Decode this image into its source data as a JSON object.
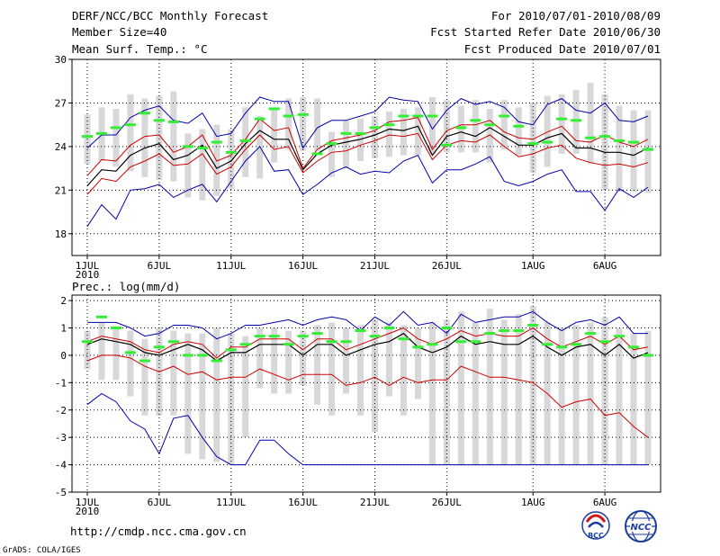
{
  "header": {
    "title": "DERF/NCC/BCC Monthly Forecast",
    "member_size": "Member Size=40",
    "panel1_label": "Mean Surf. Temp.: °C",
    "panel2_label": "Prec.: log(mm/d)",
    "period": "For 2010/07/01-2010/08/09",
    "started": "Fcst Started Refer Date 2010/06/30",
    "produced": "Fcst Produced Date 2010/07/01"
  },
  "footer": {
    "url": "http://cmdp.ncc.cma.gov.cn",
    "credit": "GrADS: COLA/IGES",
    "logo1_text": "BCC",
    "logo2_text": "NCC"
  },
  "colors": {
    "ensemble_mean": "#000000",
    "spread": "#cc0000",
    "extremes": "#0000aa",
    "members": "#d8d8da",
    "climatology": "#33ee33",
    "grid": "#000000"
  },
  "chart_data": [
    {
      "type": "line",
      "title": "Mean Surf. Temp.: °C",
      "xlabel": "",
      "ylabel": "°C",
      "ylim": [
        16.5,
        30
      ],
      "yticks": [
        18,
        21,
        24,
        27,
        30
      ],
      "xlim": [
        0,
        39
      ],
      "xticks": [
        {
          "pos": 0,
          "label": "1JUL",
          "sub": "2010"
        },
        {
          "pos": 5,
          "label": "6JUL"
        },
        {
          "pos": 10,
          "label": "11JUL"
        },
        {
          "pos": 15,
          "label": "16JUL"
        },
        {
          "pos": 20,
          "label": "21JUL"
        },
        {
          "pos": 25,
          "label": "26JUL"
        },
        {
          "pos": 31,
          "label": "1AUG"
        },
        {
          "pos": 36,
          "label": "6AUG"
        }
      ],
      "grid": true,
      "members_low": [
        22.8,
        23.0,
        22.6,
        22.3,
        21.9,
        21.7,
        21.6,
        20.5,
        20.3,
        20.6,
        21.1,
        21.9,
        21.8,
        22.9,
        23.8,
        23.7,
        23.7,
        21.9,
        22.5,
        23.0,
        23.2,
        23.3,
        23.4,
        23.4,
        23.5,
        23.6,
        23.6,
        23.6,
        22.9,
        23.8,
        23.4,
        22.2,
        22.6,
        23.5,
        23.5,
        22.8,
        21.0,
        20.9,
        20.9,
        20.8
      ],
      "members_high": [
        26.2,
        26.7,
        26.6,
        27.6,
        27.3,
        27.5,
        27.8,
        24.9,
        25.2,
        25.5,
        25.2,
        26.7,
        26.1,
        26.6,
        27.3,
        27.4,
        27.3,
        25.0,
        25.8,
        25.9,
        26.1,
        26.4,
        26.6,
        26.7,
        27.4,
        27.2,
        26.8,
        27.2,
        26.6,
        27.2,
        26.7,
        27.0,
        27.5,
        27.6,
        27.9,
        28.4,
        27.6,
        26.8,
        26.5,
        26.5
      ],
      "series": [
        {
          "name": "max",
          "values": [
            23.9,
            24.8,
            24.8,
            26.0,
            26.5,
            26.8,
            25.8,
            25.6,
            26.3,
            24.7,
            24.9,
            26.3,
            27.4,
            27.1,
            27.1,
            23.9,
            25.3,
            25.8,
            25.8,
            26.1,
            26.4,
            27.4,
            27.2,
            27.1,
            25.2,
            26.5,
            27.3,
            26.9,
            27.1,
            26.7,
            25.7,
            25.5,
            26.9,
            27.3,
            26.5,
            26.3,
            27.0,
            25.8,
            25.7,
            26.1
          ]
        },
        {
          "name": "upper",
          "values": [
            22.0,
            23.1,
            23.0,
            24.1,
            24.7,
            24.8,
            23.6,
            24.0,
            24.8,
            23.0,
            23.4,
            24.5,
            25.9,
            25.1,
            25.3,
            22.5,
            23.8,
            24.4,
            24.6,
            24.8,
            25.1,
            25.7,
            25.8,
            26.0,
            23.8,
            25.1,
            25.5,
            25.5,
            25.8,
            25.0,
            24.6,
            24.5,
            25.0,
            25.4,
            24.4,
            24.3,
            24.8,
            24.3,
            24.0,
            24.5
          ]
        },
        {
          "name": "mean",
          "values": [
            21.3,
            22.4,
            22.3,
            23.4,
            23.9,
            24.2,
            23.1,
            23.4,
            24.1,
            22.5,
            23.0,
            24.2,
            25.1,
            24.5,
            24.5,
            22.4,
            23.5,
            24.1,
            24.3,
            24.5,
            24.8,
            25.2,
            25.1,
            25.4,
            23.4,
            24.7,
            25.0,
            24.7,
            25.3,
            24.7,
            24.1,
            24.1,
            24.6,
            24.9,
            23.9,
            23.9,
            23.6,
            23.6,
            23.4,
            23.9
          ]
        },
        {
          "name": "lower",
          "values": [
            20.7,
            21.8,
            21.6,
            22.6,
            23.0,
            23.5,
            22.7,
            22.8,
            23.5,
            22.1,
            22.6,
            23.8,
            24.8,
            23.8,
            24.0,
            22.2,
            23.0,
            23.6,
            23.7,
            24.1,
            24.4,
            24.8,
            24.7,
            24.9,
            23.1,
            24.1,
            24.4,
            24.3,
            24.8,
            24.0,
            23.3,
            23.5,
            23.9,
            24.1,
            23.2,
            22.9,
            22.7,
            22.8,
            22.6,
            22.9
          ]
        },
        {
          "name": "min",
          "values": [
            18.5,
            20.0,
            19.0,
            21.0,
            21.1,
            21.4,
            20.5,
            21.0,
            21.4,
            20.2,
            21.6,
            23.0,
            24.0,
            22.3,
            22.4,
            20.7,
            21.4,
            22.2,
            22.6,
            22.1,
            22.3,
            22.2,
            23.0,
            23.4,
            21.5,
            22.4,
            22.4,
            22.8,
            23.3,
            21.6,
            21.3,
            21.6,
            22.1,
            22.4,
            20.9,
            20.9,
            19.6,
            21.1,
            20.5,
            21.2
          ]
        }
      ],
      "climatology": [
        24.7,
        24.9,
        25.3,
        25.5,
        26.3,
        25.8,
        25.7,
        24.0,
        23.9,
        24.3,
        23.6,
        24.4,
        25.9,
        26.6,
        26.1,
        26.2,
        23.5,
        24.2,
        24.9,
        24.9,
        25.3,
        25.5,
        26.1,
        26.1,
        26.1,
        24.1,
        25.3,
        25.8,
        25.5,
        26.1,
        25.4,
        24.2,
        24.3,
        25.9,
        25.8,
        24.6,
        24.7,
        24.4,
        24.3,
        23.8
      ]
    },
    {
      "type": "line",
      "title": "Prec.: log(mm/d)",
      "xlabel": "",
      "ylabel": "log(mm/d)",
      "ylim": [
        -5,
        2.2
      ],
      "yticks": [
        -5,
        -4,
        -3,
        -2,
        -1,
        0,
        1,
        2
      ],
      "xlim": [
        0,
        39
      ],
      "xticks": [
        {
          "pos": 0,
          "label": "1JUL",
          "sub": "2010"
        },
        {
          "pos": 5,
          "label": "6JUL"
        },
        {
          "pos": 10,
          "label": "11JUL"
        },
        {
          "pos": 15,
          "label": "16JUL"
        },
        {
          "pos": 20,
          "label": "21JUL"
        },
        {
          "pos": 25,
          "label": "26JUL"
        },
        {
          "pos": 31,
          "label": "1AUG"
        },
        {
          "pos": 36,
          "label": "6AUG"
        }
      ],
      "grid": true,
      "members_low": [
        -0.5,
        -0.9,
        -0.9,
        -1.5,
        -2.2,
        -2.2,
        -2.2,
        -3.6,
        -3.8,
        -3.9,
        -4.0,
        -3.0,
        -1.2,
        -1.4,
        -1.4,
        -1.1,
        -1.8,
        -2.2,
        -1.4,
        -2.2,
        -2.8,
        -1.5,
        -2.2,
        -1.6,
        -4.0,
        -4.0,
        -4.0,
        -4.0,
        -4.0,
        -4.0,
        -4.0,
        -4.0,
        -4.0,
        -4.0,
        -4.0,
        -4.0,
        -4.0,
        -4.0,
        -4.0,
        -4.0
      ],
      "members_high": [
        0.9,
        1.2,
        1.0,
        0.9,
        0.6,
        1.0,
        0.9,
        0.8,
        0.8,
        1.0,
        0.8,
        0.7,
        1.0,
        1.0,
        0.9,
        0.9,
        1.1,
        1.2,
        1.0,
        1.1,
        1.3,
        1.2,
        1.1,
        1.0,
        1.2,
        1.3,
        1.6,
        1.2,
        1.7,
        1.3,
        1.5,
        1.8,
        1.2,
        1.0,
        1.1,
        1.2,
        1.4,
        1.0,
        0.8,
        0.9
      ],
      "series": [
        {
          "name": "max",
          "values": [
            1.2,
            1.2,
            1.2,
            1.0,
            0.7,
            0.8,
            1.1,
            1.1,
            1.0,
            0.6,
            0.8,
            1.1,
            1.1,
            1.2,
            1.3,
            1.1,
            1.3,
            1.4,
            1.3,
            0.9,
            1.4,
            1.1,
            1.6,
            1.1,
            1.2,
            0.8,
            1.5,
            1.2,
            1.3,
            1.4,
            1.4,
            1.6,
            1.2,
            0.9,
            1.2,
            1.3,
            1.1,
            1.4,
            0.8,
            0.8
          ]
        },
        {
          "name": "upper",
          "values": [
            0.5,
            0.7,
            0.6,
            0.5,
            0.2,
            0.1,
            0.4,
            0.5,
            0.4,
            -0.1,
            0.3,
            0.3,
            0.6,
            0.6,
            0.6,
            0.2,
            0.6,
            0.6,
            0.2,
            0.4,
            0.6,
            0.8,
            1.0,
            0.6,
            0.4,
            0.6,
            0.9,
            0.7,
            0.8,
            0.7,
            0.7,
            1.0,
            0.6,
            0.3,
            0.5,
            0.7,
            0.4,
            0.7,
            0.2,
            0.3
          ]
        },
        {
          "name": "mean",
          "values": [
            0.4,
            0.6,
            0.5,
            0.4,
            0.1,
            0.0,
            0.2,
            0.4,
            0.2,
            -0.2,
            0.1,
            0.1,
            0.4,
            0.4,
            0.4,
            0.0,
            0.4,
            0.4,
            0.0,
            0.2,
            0.4,
            0.5,
            0.8,
            0.3,
            0.1,
            0.3,
            0.7,
            0.4,
            0.5,
            0.4,
            0.4,
            0.7,
            0.3,
            0.0,
            0.3,
            0.4,
            0.0,
            0.4,
            -0.1,
            0.1
          ]
        },
        {
          "name": "lower",
          "values": [
            -0.2,
            0.0,
            0.0,
            -0.1,
            -0.4,
            -0.6,
            -0.4,
            -0.7,
            -0.6,
            -0.9,
            -0.8,
            -0.8,
            -0.5,
            -0.7,
            -0.9,
            -0.7,
            -0.7,
            -0.7,
            -1.1,
            -1.0,
            -0.8,
            -1.1,
            -0.8,
            -1.0,
            -0.9,
            -0.9,
            -0.4,
            -0.6,
            -0.8,
            -0.8,
            -0.9,
            -1.0,
            -1.4,
            -1.9,
            -1.7,
            -1.6,
            -2.2,
            -2.1,
            -2.6,
            -3.0
          ]
        },
        {
          "name": "min",
          "values": [
            -1.8,
            -1.4,
            -1.7,
            -2.4,
            -2.7,
            -3.6,
            -2.3,
            -2.2,
            -3.0,
            -3.7,
            -4.0,
            -4.0,
            -3.1,
            -3.1,
            -3.6,
            -4.0,
            -4.0,
            -4.0,
            -4.0,
            -4.0,
            -4.0,
            -4.0,
            -4.0,
            -4.0,
            -4.0,
            -4.0,
            -4.0,
            -4.0,
            -4.0,
            -4.0,
            -4.0,
            -4.0,
            -4.0,
            -4.0,
            -4.0,
            -4.0,
            -4.0,
            -4.0,
            -4.0,
            -4.0
          ]
        }
      ],
      "climatology": [
        0.5,
        1.4,
        1.0,
        0.1,
        -0.2,
        0.3,
        0.5,
        0.0,
        0.0,
        -0.2,
        0.2,
        0.4,
        0.7,
        0.7,
        0.4,
        0.7,
        0.8,
        0.5,
        0.5,
        0.9,
        0.7,
        1.0,
        0.6,
        0.3,
        0.4,
        1.0,
        0.5,
        0.5,
        0.8,
        0.9,
        0.9,
        1.1,
        0.4,
        0.3,
        0.4,
        0.8,
        0.5,
        0.7,
        0.3,
        0.0
      ]
    }
  ]
}
